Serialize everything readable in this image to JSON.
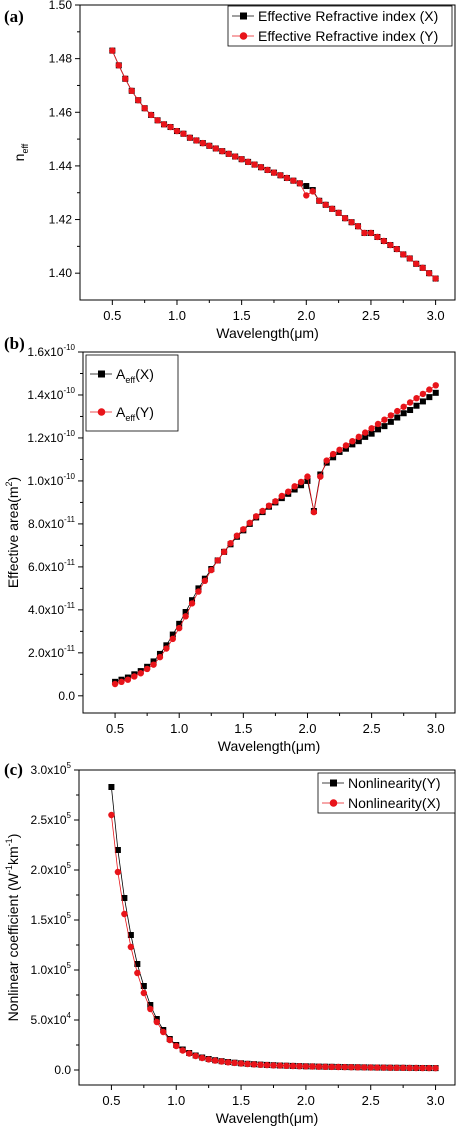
{
  "chart_data": [
    {
      "panel_label": "(a)",
      "type": "line",
      "xlabel": "Wavelength(μm)",
      "ylabel": {
        "main": "n",
        "sub": "eff"
      },
      "xlim": [
        0.25,
        3.15
      ],
      "ylim": [
        1.39,
        1.5
      ],
      "xticks": [
        0.5,
        1.0,
        1.5,
        2.0,
        2.5,
        3.0
      ],
      "xtick_labels": [
        "0.5",
        "1.0",
        "1.5",
        "2.0",
        "2.5",
        "3.0"
      ],
      "yticks": [
        1.4,
        1.42,
        1.44,
        1.46,
        1.48,
        1.5
      ],
      "ytick_labels": [
        "1.40",
        "1.42",
        "1.44",
        "1.46",
        "1.48",
        "1.50"
      ],
      "legend_position": "top-right",
      "x": [
        0.5,
        0.55,
        0.6,
        0.65,
        0.7,
        0.75,
        0.8,
        0.85,
        0.9,
        0.95,
        1.0,
        1.05,
        1.1,
        1.15,
        1.2,
        1.25,
        1.3,
        1.35,
        1.4,
        1.45,
        1.5,
        1.55,
        1.6,
        1.65,
        1.7,
        1.75,
        1.8,
        1.85,
        1.9,
        1.95,
        2.0,
        2.05,
        2.1,
        2.15,
        2.2,
        2.25,
        2.3,
        2.35,
        2.4,
        2.45,
        2.5,
        2.55,
        2.6,
        2.65,
        2.7,
        2.75,
        2.8,
        2.85,
        2.9,
        2.95,
        3.0
      ],
      "series": [
        {
          "name": "Effective Refractive index (X)",
          "color": "#000000",
          "marker": "square",
          "values": [
            1.483,
            1.4775,
            1.4725,
            1.468,
            1.4645,
            1.4615,
            1.459,
            1.457,
            1.4555,
            1.4545,
            1.453,
            1.452,
            1.4505,
            1.4495,
            1.4485,
            1.4475,
            1.4465,
            1.4455,
            1.4445,
            1.4435,
            1.4425,
            1.4415,
            1.4405,
            1.4395,
            1.4385,
            1.4375,
            1.4365,
            1.4355,
            1.4345,
            1.4335,
            1.4325,
            1.431,
            1.427,
            1.4255,
            1.424,
            1.4225,
            1.4205,
            1.419,
            1.4175,
            1.415,
            1.415,
            1.4135,
            1.412,
            1.4105,
            1.409,
            1.407,
            1.4055,
            1.4035,
            1.402,
            1.4,
            1.398
          ]
        },
        {
          "name": "Effective Refractive index (Y)",
          "color": "#e8141a",
          "marker": "circle",
          "values": [
            1.483,
            1.4775,
            1.4725,
            1.468,
            1.4645,
            1.4615,
            1.459,
            1.457,
            1.4555,
            1.4545,
            1.453,
            1.452,
            1.4505,
            1.4495,
            1.4485,
            1.4475,
            1.4465,
            1.4455,
            1.4445,
            1.4435,
            1.4425,
            1.4415,
            1.4405,
            1.4395,
            1.4385,
            1.4375,
            1.4365,
            1.4355,
            1.4345,
            1.4335,
            1.429,
            1.4305,
            1.427,
            1.4255,
            1.424,
            1.4225,
            1.4205,
            1.419,
            1.4175,
            1.415,
            1.415,
            1.4135,
            1.412,
            1.4105,
            1.409,
            1.407,
            1.4055,
            1.4035,
            1.402,
            1.4,
            1.398
          ]
        }
      ]
    },
    {
      "panel_label": "(b)",
      "type": "line",
      "xlabel": "Wavelength(μm)",
      "ylabel": {
        "main": "Effective area(m",
        "sup": "2",
        "end": ")"
      },
      "xlim": [
        0.25,
        3.15
      ],
      "ylim": [
        -8e-12,
        1.6e-10
      ],
      "xticks": [
        0.5,
        1.0,
        1.5,
        2.0,
        2.5,
        3.0
      ],
      "xtick_labels": [
        "0.5",
        "1.0",
        "1.5",
        "2.0",
        "2.5",
        "3.0"
      ],
      "yticks": [
        0,
        2e-11,
        4e-11,
        6e-11,
        8e-11,
        1e-10,
        1.2e-10,
        1.4e-10,
        1.6e-10
      ],
      "ytick_labels": [
        {
          "base": "0.0",
          "exp": ""
        },
        {
          "base": "2.0x10",
          "exp": "-11"
        },
        {
          "base": "4.0x10",
          "exp": "-11"
        },
        {
          "base": "6.0x10",
          "exp": "-11"
        },
        {
          "base": "8.0x10",
          "exp": "-11"
        },
        {
          "base": "1.0x10",
          "exp": "-10"
        },
        {
          "base": "1.2x10",
          "exp": "-10"
        },
        {
          "base": "1.4x10",
          "exp": "-10"
        },
        {
          "base": "1.6x10",
          "exp": "-10"
        }
      ],
      "legend_position": "top-left",
      "x": [
        0.5,
        0.55,
        0.6,
        0.65,
        0.7,
        0.75,
        0.8,
        0.85,
        0.9,
        0.95,
        1.0,
        1.05,
        1.1,
        1.15,
        1.2,
        1.25,
        1.3,
        1.35,
        1.4,
        1.45,
        1.5,
        1.55,
        1.6,
        1.65,
        1.7,
        1.75,
        1.8,
        1.85,
        1.9,
        1.95,
        2.0,
        2.05,
        2.1,
        2.15,
        2.2,
        2.25,
        2.3,
        2.35,
        2.4,
        2.45,
        2.5,
        2.55,
        2.6,
        2.65,
        2.7,
        2.75,
        2.8,
        2.85,
        2.9,
        2.95,
        3.0
      ],
      "series": [
        {
          "name": "A(X)",
          "label": {
            "main": "A",
            "sub": "eff",
            "end": "(X)"
          },
          "color": "#000000",
          "marker": "square",
          "values": [
            6.5e-12,
            7.5e-12,
            8.5e-12,
            1e-11,
            1.15e-11,
            1.35e-11,
            1.6e-11,
            1.95e-11,
            2.35e-11,
            2.85e-11,
            3.35e-11,
            3.9e-11,
            4.45e-11,
            5e-11,
            5.45e-11,
            5.9e-11,
            6.3e-11,
            6.7e-11,
            7.05e-11,
            7.4e-11,
            7.7e-11,
            8e-11,
            8.3e-11,
            8.55e-11,
            8.8e-11,
            9e-11,
            9.2e-11,
            9.4e-11,
            9.6e-11,
            9.8e-11,
            1e-10,
            8.6e-11,
            1.03e-10,
            1.085e-10,
            1.11e-10,
            1.135e-10,
            1.15e-10,
            1.17e-10,
            1.185e-10,
            1.205e-10,
            1.22e-10,
            1.24e-10,
            1.255e-10,
            1.275e-10,
            1.295e-10,
            1.315e-10,
            1.33e-10,
            1.35e-10,
            1.37e-10,
            1.39e-10,
            1.41e-10
          ]
        },
        {
          "name": "A(Y)",
          "label": {
            "main": "A",
            "sub": "eff",
            "end": "(Y)"
          },
          "color": "#e8141a",
          "marker": "circle",
          "values": [
            5.5e-12,
            6.5e-12,
            7.5e-12,
            9e-12,
            1.05e-11,
            1.25e-11,
            1.45e-11,
            1.8e-11,
            2.2e-11,
            2.65e-11,
            3.15e-11,
            3.7e-11,
            4.3e-11,
            4.85e-11,
            5.35e-11,
            5.85e-11,
            6.3e-11,
            6.7e-11,
            7.1e-11,
            7.45e-11,
            7.75e-11,
            8.05e-11,
            8.35e-11,
            8.6e-11,
            8.85e-11,
            9.05e-11,
            9.3e-11,
            9.5e-11,
            9.75e-11,
            9.95e-11,
            1.02e-10,
            8.55e-11,
            1.02e-10,
            1.095e-10,
            1.125e-10,
            1.145e-10,
            1.165e-10,
            1.185e-10,
            1.205e-10,
            1.225e-10,
            1.245e-10,
            1.265e-10,
            1.285e-10,
            1.305e-10,
            1.325e-10,
            1.345e-10,
            1.365e-10,
            1.385e-10,
            1.405e-10,
            1.425e-10,
            1.445e-10
          ]
        }
      ]
    },
    {
      "panel_label": "(c)",
      "type": "line",
      "xlabel": "Wavelength(μm)",
      "ylabel": {
        "main": "Nonlinear coefficient (W",
        "sup1": "-1",
        "mid": "km",
        "sup2": "-1",
        "end": ")"
      },
      "xlim": [
        0.25,
        3.15
      ],
      "ylim": [
        -15000,
        300000
      ],
      "xticks": [
        0.5,
        1.0,
        1.5,
        2.0,
        2.5,
        3.0
      ],
      "xtick_labels": [
        "0.5",
        "1.0",
        "1.5",
        "2.0",
        "2.5",
        "3.0"
      ],
      "yticks": [
        0,
        50000,
        100000,
        150000,
        200000,
        250000,
        300000
      ],
      "ytick_labels": [
        {
          "base": "0.0",
          "exp": ""
        },
        {
          "base": "5.0x10",
          "exp": "4"
        },
        {
          "base": "1.0x10",
          "exp": "5"
        },
        {
          "base": "1.5x10",
          "exp": "5"
        },
        {
          "base": "2.0x10",
          "exp": "5"
        },
        {
          "base": "2.5x10",
          "exp": "5"
        },
        {
          "base": "3.0x10",
          "exp": "5"
        }
      ],
      "legend_position": "top-right",
      "x": [
        0.5,
        0.55,
        0.6,
        0.65,
        0.7,
        0.75,
        0.8,
        0.85,
        0.9,
        0.95,
        1.0,
        1.05,
        1.1,
        1.15,
        1.2,
        1.25,
        1.3,
        1.35,
        1.4,
        1.45,
        1.5,
        1.55,
        1.6,
        1.65,
        1.7,
        1.75,
        1.8,
        1.85,
        1.9,
        1.95,
        2.0,
        2.05,
        2.1,
        2.15,
        2.2,
        2.25,
        2.3,
        2.35,
        2.4,
        2.45,
        2.5,
        2.55,
        2.6,
        2.65,
        2.7,
        2.75,
        2.8,
        2.85,
        2.9,
        2.95,
        3.0
      ],
      "series": [
        {
          "name": "Nonlinearity(Y)",
          "color": "#000000",
          "marker": "square",
          "values": [
            283000,
            220000,
            172000,
            135000,
            106000,
            84000,
            65000,
            51000,
            40000,
            31000,
            25000,
            20500,
            17000,
            14500,
            12500,
            11000,
            9800,
            8800,
            8000,
            7300,
            6700,
            6200,
            5800,
            5400,
            5100,
            4800,
            4500,
            4300,
            4100,
            3900,
            3700,
            3600,
            3400,
            3300,
            3200,
            3050,
            2950,
            2850,
            2750,
            2650,
            2550,
            2450,
            2400,
            2300,
            2250,
            2200,
            2100,
            2050,
            2000,
            1950,
            1900
          ]
        },
        {
          "name": "Nonlinearity(X)",
          "color": "#e8141a",
          "marker": "circle",
          "values": [
            255000,
            198000,
            156000,
            123000,
            97000,
            77000,
            61000,
            48000,
            38000,
            30000,
            24000,
            19500,
            16500,
            14000,
            12000,
            10600,
            9400,
            8500,
            7700,
            7100,
            6500,
            6000,
            5600,
            5200,
            4900,
            4600,
            4400,
            4200,
            4000,
            3800,
            3600,
            3500,
            3300,
            3200,
            3100,
            3000,
            2900,
            2800,
            2700,
            2600,
            2500,
            2400,
            2350,
            2250,
            2200,
            2150,
            2050,
            2000,
            1950,
            1900,
            1850
          ]
        }
      ]
    }
  ]
}
